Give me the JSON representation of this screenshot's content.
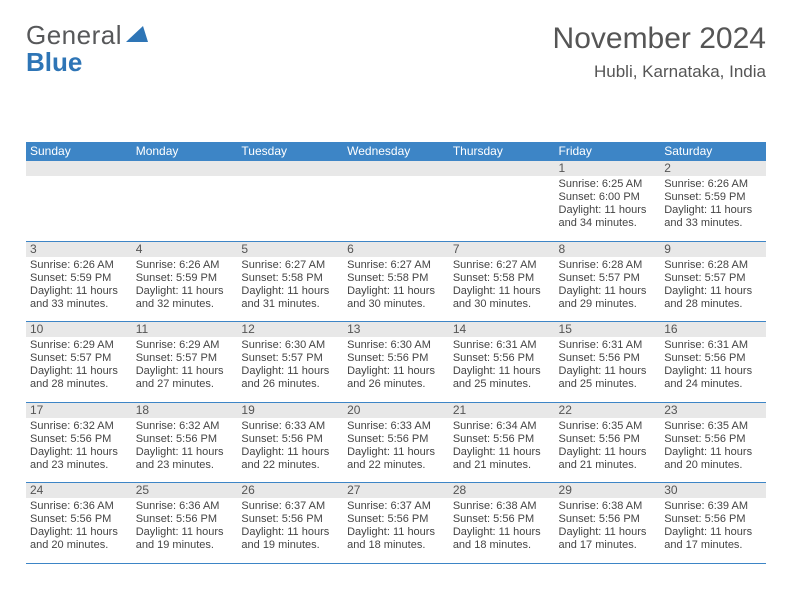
{
  "logo": {
    "text1": "General",
    "text2": "Blue",
    "tri_color": "#2e75b6"
  },
  "header": {
    "title": "November 2024",
    "location": "Hubli, Karnataka, India"
  },
  "colors": {
    "header_bg": "#3d85c6",
    "header_fg": "#ffffff",
    "daynum_bg": "#e8e8e8",
    "border": "#3d85c6",
    "text": "#444444"
  },
  "days": [
    "Sunday",
    "Monday",
    "Tuesday",
    "Wednesday",
    "Thursday",
    "Friday",
    "Saturday"
  ],
  "weeks": [
    [
      null,
      null,
      null,
      null,
      null,
      {
        "n": "1",
        "sr": "6:25 AM",
        "ss": "6:00 PM",
        "dl": "11 hours and 34 minutes."
      },
      {
        "n": "2",
        "sr": "6:26 AM",
        "ss": "5:59 PM",
        "dl": "11 hours and 33 minutes."
      }
    ],
    [
      {
        "n": "3",
        "sr": "6:26 AM",
        "ss": "5:59 PM",
        "dl": "11 hours and 33 minutes."
      },
      {
        "n": "4",
        "sr": "6:26 AM",
        "ss": "5:59 PM",
        "dl": "11 hours and 32 minutes."
      },
      {
        "n": "5",
        "sr": "6:27 AM",
        "ss": "5:58 PM",
        "dl": "11 hours and 31 minutes."
      },
      {
        "n": "6",
        "sr": "6:27 AM",
        "ss": "5:58 PM",
        "dl": "11 hours and 30 minutes."
      },
      {
        "n": "7",
        "sr": "6:27 AM",
        "ss": "5:58 PM",
        "dl": "11 hours and 30 minutes."
      },
      {
        "n": "8",
        "sr": "6:28 AM",
        "ss": "5:57 PM",
        "dl": "11 hours and 29 minutes."
      },
      {
        "n": "9",
        "sr": "6:28 AM",
        "ss": "5:57 PM",
        "dl": "11 hours and 28 minutes."
      }
    ],
    [
      {
        "n": "10",
        "sr": "6:29 AM",
        "ss": "5:57 PM",
        "dl": "11 hours and 28 minutes."
      },
      {
        "n": "11",
        "sr": "6:29 AM",
        "ss": "5:57 PM",
        "dl": "11 hours and 27 minutes."
      },
      {
        "n": "12",
        "sr": "6:30 AM",
        "ss": "5:57 PM",
        "dl": "11 hours and 26 minutes."
      },
      {
        "n": "13",
        "sr": "6:30 AM",
        "ss": "5:56 PM",
        "dl": "11 hours and 26 minutes."
      },
      {
        "n": "14",
        "sr": "6:31 AM",
        "ss": "5:56 PM",
        "dl": "11 hours and 25 minutes."
      },
      {
        "n": "15",
        "sr": "6:31 AM",
        "ss": "5:56 PM",
        "dl": "11 hours and 25 minutes."
      },
      {
        "n": "16",
        "sr": "6:31 AM",
        "ss": "5:56 PM",
        "dl": "11 hours and 24 minutes."
      }
    ],
    [
      {
        "n": "17",
        "sr": "6:32 AM",
        "ss": "5:56 PM",
        "dl": "11 hours and 23 minutes."
      },
      {
        "n": "18",
        "sr": "6:32 AM",
        "ss": "5:56 PM",
        "dl": "11 hours and 23 minutes."
      },
      {
        "n": "19",
        "sr": "6:33 AM",
        "ss": "5:56 PM",
        "dl": "11 hours and 22 minutes."
      },
      {
        "n": "20",
        "sr": "6:33 AM",
        "ss": "5:56 PM",
        "dl": "11 hours and 22 minutes."
      },
      {
        "n": "21",
        "sr": "6:34 AM",
        "ss": "5:56 PM",
        "dl": "11 hours and 21 minutes."
      },
      {
        "n": "22",
        "sr": "6:35 AM",
        "ss": "5:56 PM",
        "dl": "11 hours and 21 minutes."
      },
      {
        "n": "23",
        "sr": "6:35 AM",
        "ss": "5:56 PM",
        "dl": "11 hours and 20 minutes."
      }
    ],
    [
      {
        "n": "24",
        "sr": "6:36 AM",
        "ss": "5:56 PM",
        "dl": "11 hours and 20 minutes."
      },
      {
        "n": "25",
        "sr": "6:36 AM",
        "ss": "5:56 PM",
        "dl": "11 hours and 19 minutes."
      },
      {
        "n": "26",
        "sr": "6:37 AM",
        "ss": "5:56 PM",
        "dl": "11 hours and 19 minutes."
      },
      {
        "n": "27",
        "sr": "6:37 AM",
        "ss": "5:56 PM",
        "dl": "11 hours and 18 minutes."
      },
      {
        "n": "28",
        "sr": "6:38 AM",
        "ss": "5:56 PM",
        "dl": "11 hours and 18 minutes."
      },
      {
        "n": "29",
        "sr": "6:38 AM",
        "ss": "5:56 PM",
        "dl": "11 hours and 17 minutes."
      },
      {
        "n": "30",
        "sr": "6:39 AM",
        "ss": "5:56 PM",
        "dl": "11 hours and 17 minutes."
      }
    ]
  ],
  "labels": {
    "sunrise": "Sunrise: ",
    "sunset": "Sunset: ",
    "daylight": "Daylight: "
  }
}
